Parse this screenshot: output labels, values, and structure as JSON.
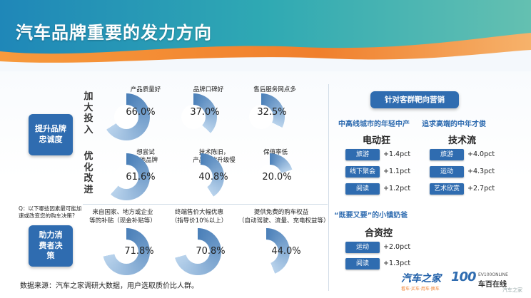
{
  "title": "汽车品牌重要的发力方向",
  "left": {
    "section1_label": "提升品牌忠诚度",
    "section2_label": "助力消费者决策",
    "row1_label": "加大投入",
    "row2_label": "优化改进",
    "question": "Q：以下哪些因素最可能加速或改变您的购车决策?",
    "row1": [
      {
        "label": "产品质量好",
        "value": "66.0%",
        "pct": 66.0
      },
      {
        "label": "品牌口碑好",
        "value": "37.0%",
        "pct": 37.0
      },
      {
        "label": "售后服务网点多",
        "value": "32.5%",
        "pct": 32.5
      }
    ],
    "row2": [
      {
        "label1": "想尝试",
        "label2": "其他品牌",
        "value": "61.6%",
        "pct": 61.6
      },
      {
        "label1": "技术陈旧，",
        "label2": "产品迭代升级慢",
        "value": "40.8%",
        "pct": 40.8
      },
      {
        "label1": "保值率低",
        "label2": "",
        "value": "20.0%",
        "pct": 20.0
      }
    ],
    "row3": [
      {
        "label1": "来自国家、地方或企业",
        "label2": "等的补贴（现金补贴等）",
        "value": "71.8%",
        "pct": 71.8
      },
      {
        "label1": "终端售价大幅优惠",
        "label2": "（指导价10%以上）",
        "value": "70.8%",
        "pct": 70.8
      },
      {
        "label1": "提供免费的购车权益",
        "label2": "（自动驾驶、流量、充电权益等）",
        "value": "44.0%",
        "pct": 44.0
      }
    ]
  },
  "right": {
    "title": "针对客群靶向营销",
    "sub1": "中高线城市的年轻中产",
    "sub2": "追求高端的中年才俊",
    "group1": {
      "name": "电动狂",
      "items": [
        {
          "tag": "旅游",
          "value": "+1.4pct"
        },
        {
          "tag": "线下聚会",
          "value": "+1.1pct"
        },
        {
          "tag": "阅读",
          "value": "+1.2pct"
        }
      ]
    },
    "group2": {
      "name": "技术流",
      "items": [
        {
          "tag": "旅游",
          "value": "+4.0pct"
        },
        {
          "tag": "运动",
          "value": "+4.3pct"
        },
        {
          "tag": "艺术欣赏",
          "value": "+2.7pct"
        }
      ]
    },
    "sub3": "“既要又要”的小镇奶爸",
    "group3": {
      "name": "合资控",
      "items": [
        {
          "tag": "运动",
          "value": "+2.0pct"
        },
        {
          "tag": "阅读",
          "value": "+1.3pct"
        }
      ]
    }
  },
  "source": "数据来源：汽车之家调研大数据，用户选取质价比人群。",
  "logos": {
    "brand1": "汽车之家",
    "brand1_sub": "看车·买车·用车·换车",
    "brand2": "车百在线",
    "brand2_en": "EV100ONLINE",
    "brand2_mark": "100"
  },
  "watermark": "汽车之家",
  "colors": {
    "donut_dark": "#4a7fb8",
    "donut_light": "#b9d3ec",
    "box_blue": "#2f6cb0",
    "accent_orange": "#f07f2c"
  }
}
